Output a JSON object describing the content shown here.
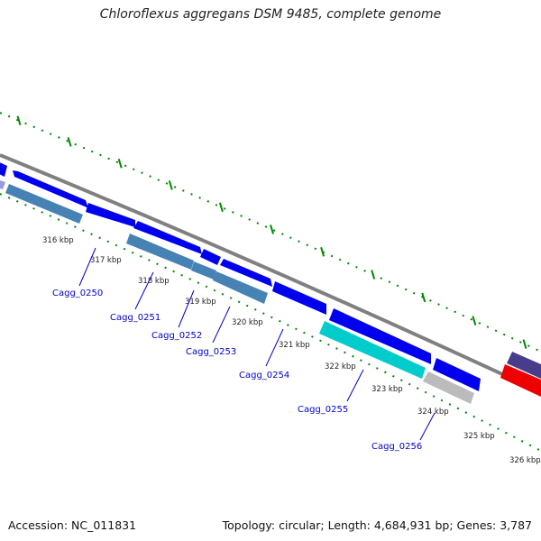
{
  "title": "Chloroflexus aggregans DSM 9485, complete genome",
  "footer": {
    "accession": "Accession: NC_011831",
    "summary": "Topology: circular; Length: 4,684,931 bp; Genes: 3,787"
  },
  "colors": {
    "backbone": "#808080",
    "gene_forward": "#0000ee",
    "gene_reverse": "#4682b4",
    "gene_highlight": "#00cccc",
    "gene_grey": "#bbbbbb",
    "gene_purple": "#483d8b",
    "gene_red": "#ee0000",
    "tick": "#008800",
    "gene_label": "#0000cc"
  },
  "ticks": [
    "316 kbp",
    "317 kbp",
    "318 kbp",
    "319 kbp",
    "320 kbp",
    "321 kbp",
    "322 kbp",
    "323 kbp",
    "324 kbp",
    "325 kbp",
    "326 kbp"
  ],
  "gene_labels": [
    "Cagg_0250",
    "Cagg_0251",
    "Cagg_0252",
    "Cagg_0253",
    "Cagg_0254",
    "Cagg_0255",
    "Cagg_0256"
  ]
}
